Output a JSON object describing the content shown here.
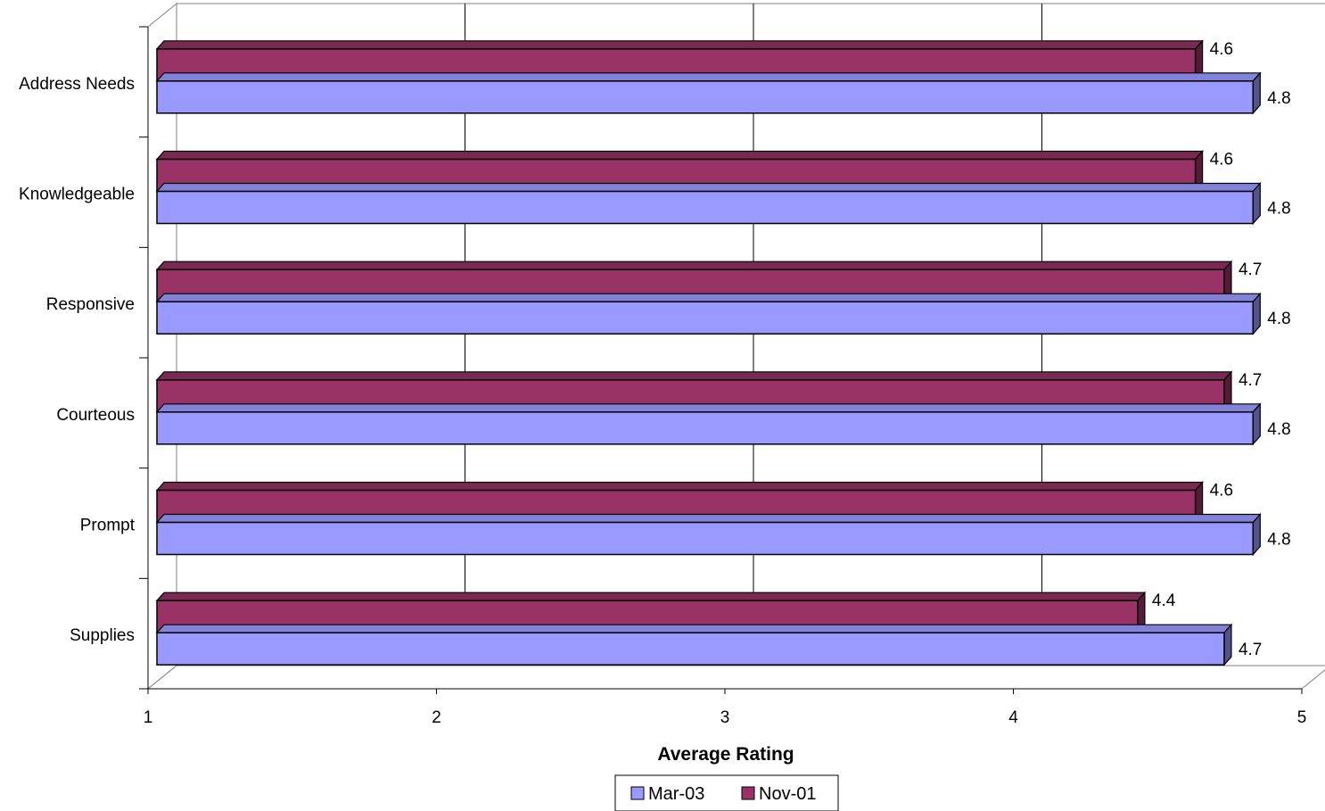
{
  "chart_data": {
    "type": "bar",
    "orientation": "horizontal",
    "categories": [
      "Address Needs",
      "Knowledgeable",
      "Responsive",
      "Courteous",
      "Prompt",
      "Supplies"
    ],
    "series": [
      {
        "name": "Mar-03",
        "color": "#9999ff",
        "values": [
          4.8,
          4.8,
          4.8,
          4.8,
          4.8,
          4.7
        ],
        "labels": [
          "4.8",
          "4.8",
          "4.8",
          "4.8",
          "4.8",
          "4.7"
        ]
      },
      {
        "name": "Nov-01",
        "color": "#993366",
        "values": [
          4.6,
          4.6,
          4.7,
          4.7,
          4.6,
          4.4
        ],
        "labels": [
          "4.6",
          "4.6",
          "4.7",
          "4.7",
          "4.6",
          "4.4"
        ]
      }
    ],
    "xlim": [
      1,
      5
    ],
    "xticks": [
      "1",
      "2",
      "3",
      "4",
      "5"
    ],
    "xlabel": "Average Rating",
    "grid": true,
    "legend_position": "bottom",
    "style": "3d"
  }
}
